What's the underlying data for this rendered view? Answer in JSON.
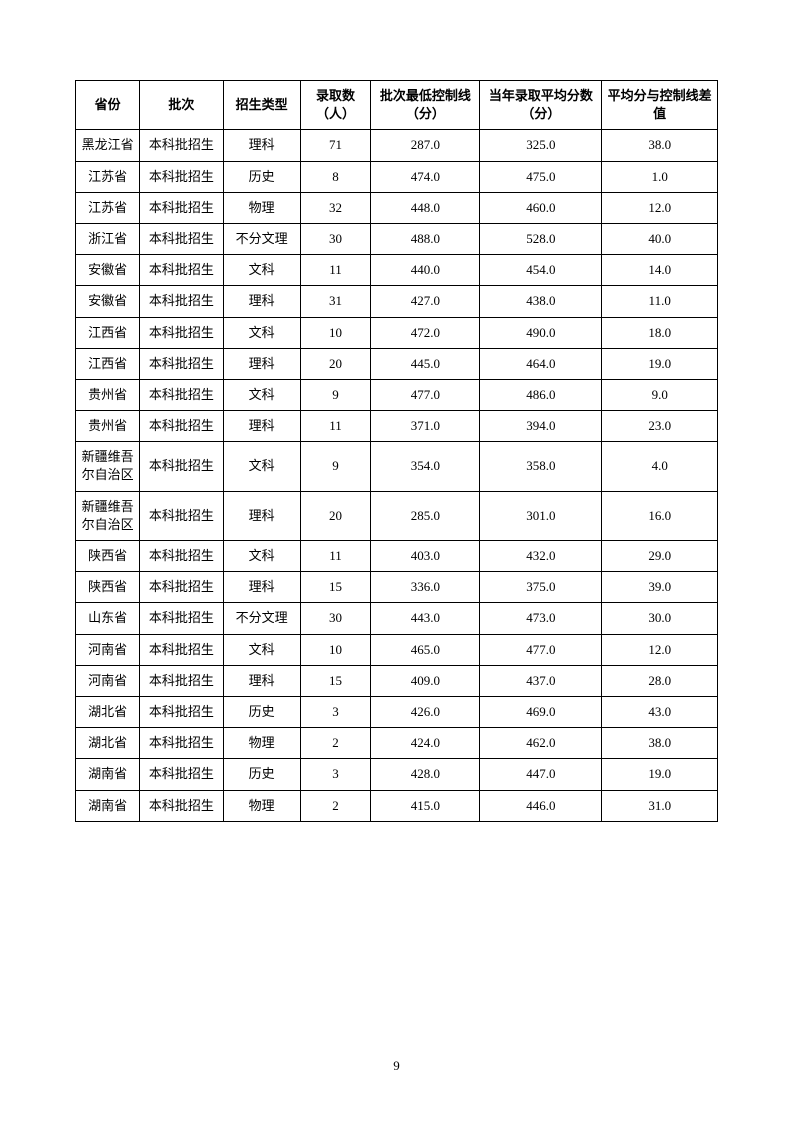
{
  "page_number": "9",
  "table": {
    "columns": [
      "省份",
      "批次",
      "招生类型",
      "录取数（人）",
      "批次最低控制线（分）",
      "当年录取平均分数（分）",
      "平均分与控制线差值"
    ],
    "rows": [
      [
        "黑龙江省",
        "本科批招生",
        "理科",
        "71",
        "287.0",
        "325.0",
        "38.0"
      ],
      [
        "江苏省",
        "本科批招生",
        "历史",
        "8",
        "474.0",
        "475.0",
        "1.0"
      ],
      [
        "江苏省",
        "本科批招生",
        "物理",
        "32",
        "448.0",
        "460.0",
        "12.0"
      ],
      [
        "浙江省",
        "本科批招生",
        "不分文理",
        "30",
        "488.0",
        "528.0",
        "40.0"
      ],
      [
        "安徽省",
        "本科批招生",
        "文科",
        "11",
        "440.0",
        "454.0",
        "14.0"
      ],
      [
        "安徽省",
        "本科批招生",
        "理科",
        "31",
        "427.0",
        "438.0",
        "11.0"
      ],
      [
        "江西省",
        "本科批招生",
        "文科",
        "10",
        "472.0",
        "490.0",
        "18.0"
      ],
      [
        "江西省",
        "本科批招生",
        "理科",
        "20",
        "445.0",
        "464.0",
        "19.0"
      ],
      [
        "贵州省",
        "本科批招生",
        "文科",
        "9",
        "477.0",
        "486.0",
        "9.0"
      ],
      [
        "贵州省",
        "本科批招生",
        "理科",
        "11",
        "371.0",
        "394.0",
        "23.0"
      ],
      [
        "新疆维吾尔自治区",
        "本科批招生",
        "文科",
        "9",
        "354.0",
        "358.0",
        "4.0"
      ],
      [
        "新疆维吾尔自治区",
        "本科批招生",
        "理科",
        "20",
        "285.0",
        "301.0",
        "16.0"
      ],
      [
        "陕西省",
        "本科批招生",
        "文科",
        "11",
        "403.0",
        "432.0",
        "29.0"
      ],
      [
        "陕西省",
        "本科批招生",
        "理科",
        "15",
        "336.0",
        "375.0",
        "39.0"
      ],
      [
        "山东省",
        "本科批招生",
        "不分文理",
        "30",
        "443.0",
        "473.0",
        "30.0"
      ],
      [
        "河南省",
        "本科批招生",
        "文科",
        "10",
        "465.0",
        "477.0",
        "12.0"
      ],
      [
        "河南省",
        "本科批招生",
        "理科",
        "15",
        "409.0",
        "437.0",
        "28.0"
      ],
      [
        "湖北省",
        "本科批招生",
        "历史",
        "3",
        "426.0",
        "469.0",
        "43.0"
      ],
      [
        "湖北省",
        "本科批招生",
        "物理",
        "2",
        "424.0",
        "462.0",
        "38.0"
      ],
      [
        "湖南省",
        "本科批招生",
        "历史",
        "3",
        "428.0",
        "447.0",
        "19.0"
      ],
      [
        "湖南省",
        "本科批招生",
        "物理",
        "2",
        "415.0",
        "446.0",
        "31.0"
      ]
    ]
  }
}
